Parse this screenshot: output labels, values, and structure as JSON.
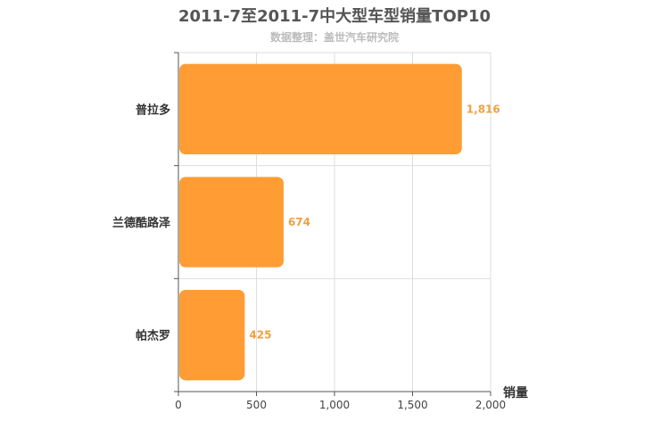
{
  "chart_data": {
    "type": "bar",
    "orientation": "horizontal",
    "title": "2011-7至2011-7中大型车型销量TOP10",
    "subtitle": "数据整理：盖世汽车研究院",
    "categories": [
      "普拉多",
      "兰德酷路泽",
      "帕杰罗"
    ],
    "values": [
      1816,
      674,
      425
    ],
    "value_labels": [
      "1,816",
      "674",
      "425"
    ],
    "xlabel": "销量",
    "xlim": [
      0,
      2000
    ],
    "xticks": [
      0,
      500,
      1000,
      1500,
      2000
    ],
    "xtick_labels": [
      "0",
      "500",
      "1,000",
      "1,500",
      "2,000"
    ],
    "grid": true,
    "bar_color": "#ff9c33",
    "value_label_color": "#f0a040"
  }
}
